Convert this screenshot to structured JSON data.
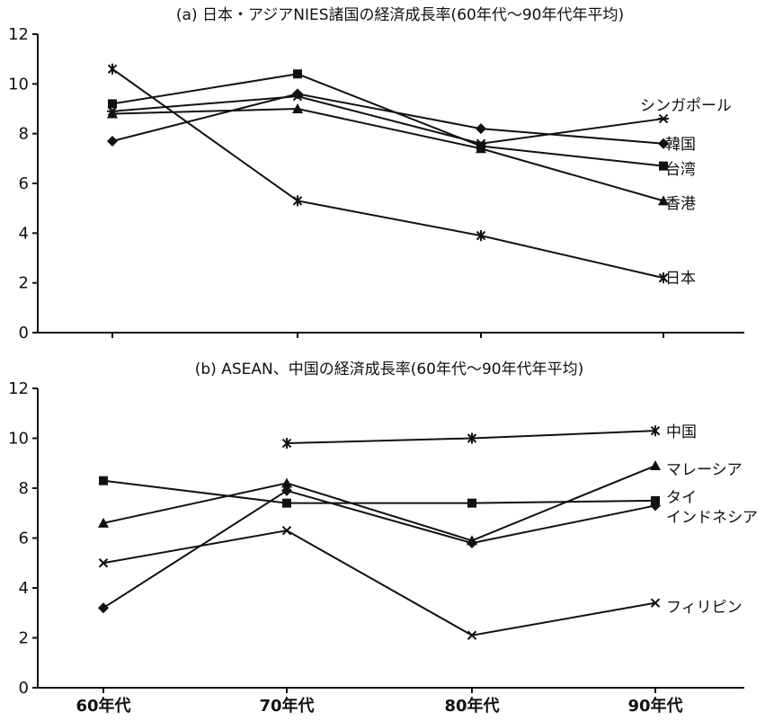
{
  "chart_data": [
    {
      "type": "line",
      "title": "(a) 日本・アジアNIES諸国の経済成長率(60年代～90年代年平均)",
      "categories": [
        "60年代",
        "70年代",
        "80年代",
        "90年代"
      ],
      "ylim": [
        0,
        12
      ],
      "yticks": [
        "0",
        "2",
        "4",
        "6",
        "8",
        "10",
        "12"
      ],
      "grid": false,
      "legend": "end-of-line labels",
      "series": [
        {
          "name": "シンガポール",
          "marker": "plus",
          "values": [
            8.9,
            9.5,
            7.6,
            8.6
          ]
        },
        {
          "name": "韓国",
          "marker": "diamond",
          "values": [
            7.7,
            9.6,
            8.2,
            7.6
          ]
        },
        {
          "name": "台湾",
          "marker": "square",
          "values": [
            9.2,
            10.4,
            7.5,
            6.7
          ]
        },
        {
          "name": "香港",
          "marker": "triangle",
          "values": [
            8.8,
            9.0,
            7.4,
            5.3
          ]
        },
        {
          "name": "日本",
          "marker": "star",
          "values": [
            10.6,
            5.3,
            3.9,
            2.2
          ]
        }
      ]
    },
    {
      "type": "line",
      "title": "(b) ASEAN、中国の経済成長率(60年代～90年代年平均)",
      "categories": [
        "60年代",
        "70年代",
        "80年代",
        "90年代"
      ],
      "ylim": [
        0,
        12
      ],
      "yticks": [
        "0",
        "2",
        "4",
        "6",
        "8",
        "10",
        "12"
      ],
      "grid": false,
      "legend": "end-of-line labels",
      "series": [
        {
          "name": "中国",
          "marker": "star",
          "values": [
            null,
            9.8,
            10.0,
            10.3
          ]
        },
        {
          "name": "マレーシア",
          "marker": "triangle",
          "values": [
            6.6,
            8.2,
            5.9,
            8.9
          ]
        },
        {
          "name": "タイ",
          "marker": "square",
          "values": [
            8.3,
            7.4,
            7.4,
            7.5
          ]
        },
        {
          "name": "インドネシア",
          "marker": "diamond",
          "values": [
            3.2,
            7.9,
            5.8,
            7.3
          ]
        },
        {
          "name": "フィリピン",
          "marker": "x",
          "values": [
            5.0,
            6.3,
            2.1,
            3.4
          ]
        }
      ]
    }
  ]
}
